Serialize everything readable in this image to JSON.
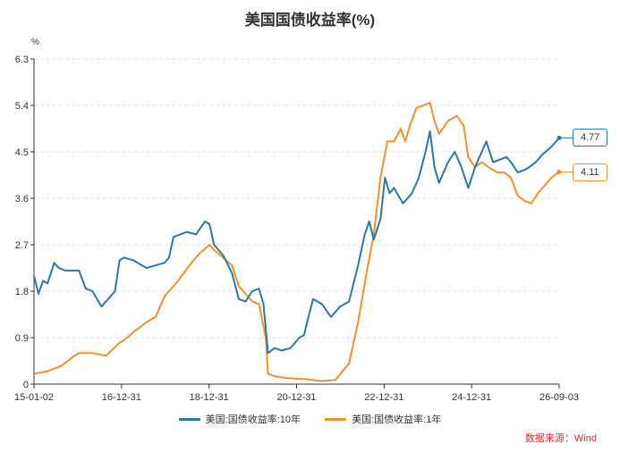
{
  "chart_data": {
    "type": "line",
    "title": "美国国债收益率(%)",
    "unit": "%",
    "x_ticks": [
      "15-01-02",
      "16-12-31",
      "18-12-31",
      "20-12-31",
      "22-12-31",
      "24-12-31",
      "26-09-03"
    ],
    "y_ticks": [
      "0",
      "0.9",
      "1.8",
      "2.7",
      "3.6",
      "4.5",
      "5.4",
      "6.3"
    ],
    "ylim": [
      0,
      6.3
    ],
    "xlim": [
      2015.0,
      2026.67
    ],
    "grid": true,
    "legend_position": "bottom",
    "series": [
      {
        "name": "美国:国债收益率:10年",
        "color": "#2a78a4",
        "last_label": "4.77",
        "points": [
          [
            2015.0,
            2.1
          ],
          [
            2015.1,
            1.75
          ],
          [
            2015.2,
            2.0
          ],
          [
            2015.3,
            1.95
          ],
          [
            2015.45,
            2.35
          ],
          [
            2015.55,
            2.25
          ],
          [
            2015.7,
            2.2
          ],
          [
            2015.85,
            2.2
          ],
          [
            2016.0,
            2.2
          ],
          [
            2016.15,
            1.85
          ],
          [
            2016.3,
            1.8
          ],
          [
            2016.5,
            1.5
          ],
          [
            2016.6,
            1.6
          ],
          [
            2016.8,
            1.8
          ],
          [
            2016.9,
            2.4
          ],
          [
            2017.0,
            2.45
          ],
          [
            2017.2,
            2.4
          ],
          [
            2017.5,
            2.25
          ],
          [
            2017.7,
            2.3
          ],
          [
            2017.9,
            2.35
          ],
          [
            2018.0,
            2.45
          ],
          [
            2018.1,
            2.85
          ],
          [
            2018.4,
            2.95
          ],
          [
            2018.6,
            2.9
          ],
          [
            2018.8,
            3.15
          ],
          [
            2018.9,
            3.1
          ],
          [
            2019.0,
            2.7
          ],
          [
            2019.2,
            2.5
          ],
          [
            2019.4,
            2.15
          ],
          [
            2019.55,
            1.65
          ],
          [
            2019.7,
            1.6
          ],
          [
            2019.85,
            1.8
          ],
          [
            2020.0,
            1.85
          ],
          [
            2020.1,
            1.55
          ],
          [
            2020.2,
            0.6
          ],
          [
            2020.35,
            0.7
          ],
          [
            2020.5,
            0.65
          ],
          [
            2020.7,
            0.7
          ],
          [
            2020.9,
            0.9
          ],
          [
            2021.0,
            0.95
          ],
          [
            2021.1,
            1.3
          ],
          [
            2021.2,
            1.65
          ],
          [
            2021.4,
            1.55
          ],
          [
            2021.6,
            1.3
          ],
          [
            2021.8,
            1.5
          ],
          [
            2022.0,
            1.6
          ],
          [
            2022.2,
            2.3
          ],
          [
            2022.35,
            2.9
          ],
          [
            2022.45,
            3.15
          ],
          [
            2022.55,
            2.8
          ],
          [
            2022.7,
            3.2
          ],
          [
            2022.8,
            4.0
          ],
          [
            2022.9,
            3.7
          ],
          [
            2023.0,
            3.8
          ],
          [
            2023.2,
            3.5
          ],
          [
            2023.4,
            3.7
          ],
          [
            2023.55,
            4.0
          ],
          [
            2023.7,
            4.5
          ],
          [
            2023.8,
            4.9
          ],
          [
            2023.9,
            4.2
          ],
          [
            2024.0,
            3.9
          ],
          [
            2024.2,
            4.3
          ],
          [
            2024.35,
            4.5
          ],
          [
            2024.5,
            4.2
          ],
          [
            2024.65,
            3.8
          ],
          [
            2024.8,
            4.2
          ],
          [
            2024.95,
            4.5
          ],
          [
            2025.05,
            4.7
          ],
          [
            2025.2,
            4.3
          ],
          [
            2025.35,
            4.35
          ],
          [
            2025.5,
            4.4
          ],
          [
            2025.6,
            4.3
          ],
          [
            2025.75,
            4.1
          ],
          [
            2025.9,
            4.15
          ],
          [
            2026.0,
            4.2
          ],
          [
            2026.15,
            4.3
          ],
          [
            2026.3,
            4.45
          ],
          [
            2026.5,
            4.6
          ],
          [
            2026.67,
            4.77
          ]
        ]
      },
      {
        "name": "美国:国债收益率:1年",
        "color": "#f0902a",
        "last_label": "4.11",
        "points": [
          [
            2015.0,
            0.2
          ],
          [
            2015.3,
            0.25
          ],
          [
            2015.6,
            0.35
          ],
          [
            2015.9,
            0.55
          ],
          [
            2016.0,
            0.6
          ],
          [
            2016.3,
            0.6
          ],
          [
            2016.6,
            0.55
          ],
          [
            2016.9,
            0.8
          ],
          [
            2017.0,
            0.85
          ],
          [
            2017.2,
            1.0
          ],
          [
            2017.5,
            1.2
          ],
          [
            2017.7,
            1.3
          ],
          [
            2017.9,
            1.7
          ],
          [
            2018.0,
            1.8
          ],
          [
            2018.2,
            2.0
          ],
          [
            2018.5,
            2.35
          ],
          [
            2018.7,
            2.55
          ],
          [
            2018.9,
            2.7
          ],
          [
            2019.0,
            2.6
          ],
          [
            2019.2,
            2.45
          ],
          [
            2019.4,
            2.3
          ],
          [
            2019.55,
            1.9
          ],
          [
            2019.7,
            1.75
          ],
          [
            2019.85,
            1.6
          ],
          [
            2020.0,
            1.55
          ],
          [
            2020.15,
            0.9
          ],
          [
            2020.2,
            0.2
          ],
          [
            2020.35,
            0.15
          ],
          [
            2020.6,
            0.12
          ],
          [
            2020.9,
            0.1
          ],
          [
            2021.0,
            0.1
          ],
          [
            2021.4,
            0.06
          ],
          [
            2021.7,
            0.08
          ],
          [
            2021.9,
            0.3
          ],
          [
            2022.0,
            0.4
          ],
          [
            2022.2,
            1.2
          ],
          [
            2022.4,
            2.2
          ],
          [
            2022.55,
            2.9
          ],
          [
            2022.7,
            4.0
          ],
          [
            2022.85,
            4.7
          ],
          [
            2023.0,
            4.7
          ],
          [
            2023.15,
            4.95
          ],
          [
            2023.25,
            4.7
          ],
          [
            2023.35,
            5.0
          ],
          [
            2023.5,
            5.35
          ],
          [
            2023.65,
            5.4
          ],
          [
            2023.8,
            5.45
          ],
          [
            2023.9,
            5.1
          ],
          [
            2024.0,
            4.85
          ],
          [
            2024.2,
            5.1
          ],
          [
            2024.4,
            5.2
          ],
          [
            2024.55,
            5.0
          ],
          [
            2024.65,
            4.4
          ],
          [
            2024.8,
            4.2
          ],
          [
            2024.95,
            4.3
          ],
          [
            2025.1,
            4.2
          ],
          [
            2025.3,
            4.1
          ],
          [
            2025.45,
            4.1
          ],
          [
            2025.6,
            4.0
          ],
          [
            2025.75,
            3.65
          ],
          [
            2025.9,
            3.55
          ],
          [
            2026.05,
            3.5
          ],
          [
            2026.2,
            3.7
          ],
          [
            2026.35,
            3.85
          ],
          [
            2026.5,
            4.0
          ],
          [
            2026.67,
            4.11
          ]
        ]
      }
    ]
  },
  "source": "数据来源：Wind"
}
